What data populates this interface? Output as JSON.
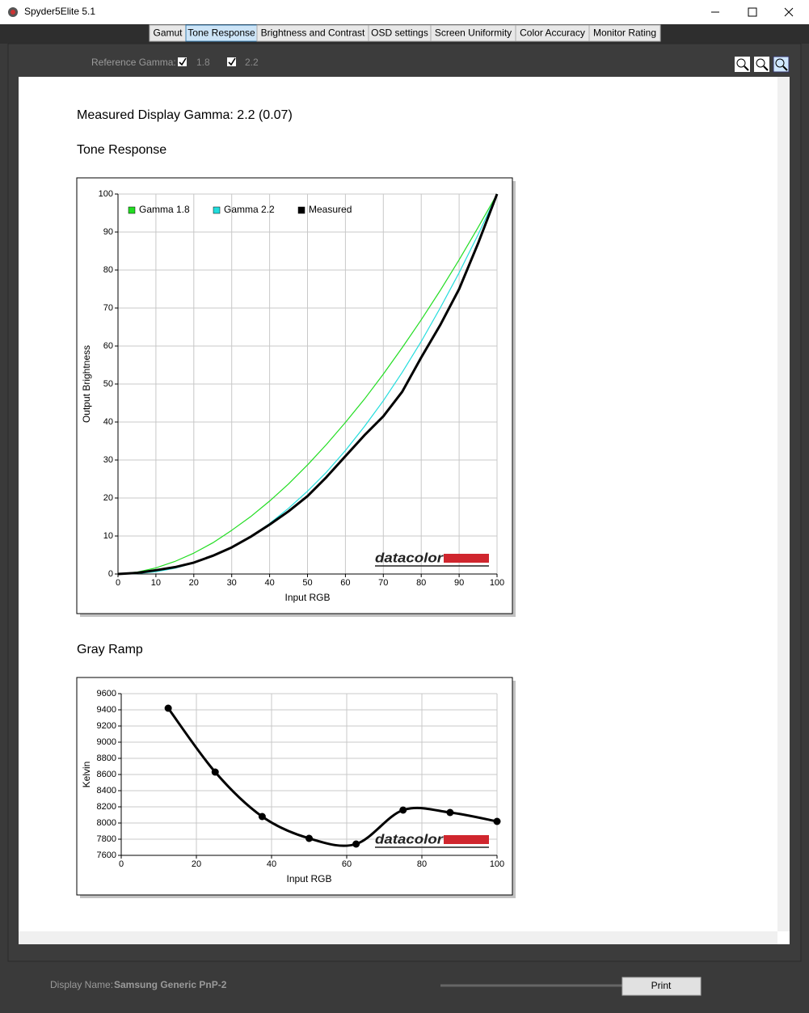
{
  "window": {
    "title": "Spyder5Elite 5.1"
  },
  "tabs": [
    "Gamut",
    "Tone Response",
    "Brightness and Contrast",
    "OSD settings",
    "Screen Uniformity",
    "Color Accuracy",
    "Monitor Rating"
  ],
  "active_tab": 1,
  "toolbar": {
    "reference_gamma_label": "Reference Gamma:",
    "options": [
      "1.8",
      "2.2"
    ]
  },
  "report": {
    "measured_gamma": "Measured Display Gamma: 2.2 (0.07)",
    "tone_response_title": "Tone Response",
    "gray_ramp_title": "Gray Ramp"
  },
  "footer": {
    "display_name_label": "Display Name:",
    "display_name": "Samsung Generic PnP-2",
    "print_button": "Print"
  },
  "chart_data": [
    {
      "type": "line",
      "x": [
        0,
        5,
        10,
        15,
        20,
        25,
        30,
        35,
        40,
        45,
        50,
        55,
        60,
        65,
        70,
        75,
        80,
        85,
        90,
        95,
        100
      ],
      "series": [
        {
          "name": "Gamma 1.8",
          "color": "#22dd22",
          "values": [
            0,
            0.5,
            1.6,
            3.3,
            5.5,
            8.2,
            11.5,
            15.1,
            19.2,
            23.7,
            28.7,
            34.1,
            39.9,
            46.0,
            52.6,
            59.6,
            66.9,
            74.6,
            82.7,
            91.2,
            100
          ]
        },
        {
          "name": "Gamma 2.2",
          "color": "#22dddd",
          "values": [
            0,
            0.1,
            0.6,
            1.5,
            2.9,
            4.7,
            7.1,
            9.9,
            13.3,
            17.3,
            21.8,
            26.8,
            32.5,
            38.8,
            45.6,
            53.1,
            61.2,
            70.0,
            79.3,
            89.3,
            100
          ]
        },
        {
          "name": "Measured",
          "color": "#000000",
          "values": [
            0,
            0.3,
            1.0,
            1.8,
            3.0,
            4.8,
            7.0,
            9.8,
            13.0,
            16.5,
            20.5,
            25.5,
            31.0,
            36.5,
            41.5,
            48.0,
            57.0,
            65.5,
            75.0,
            87.0,
            100
          ]
        }
      ],
      "xlim": [
        0,
        100
      ],
      "ylim": [
        0,
        100
      ],
      "xticks": [
        0,
        10,
        20,
        30,
        40,
        50,
        60,
        70,
        80,
        90,
        100
      ],
      "yticks": [
        0,
        10,
        20,
        30,
        40,
        50,
        60,
        70,
        80,
        90,
        100
      ],
      "xlabel": "Input RGB",
      "ylabel": "Output Brightness",
      "grid": true,
      "legend": "upper left",
      "watermark": "datacolor"
    },
    {
      "type": "line",
      "x": [
        12.5,
        25,
        37.5,
        50,
        62.5,
        75,
        87.5,
        100
      ],
      "values": [
        9420,
        8630,
        8080,
        7810,
        7740,
        8160,
        8130,
        8020
      ],
      "color": "#000000",
      "markers": true,
      "smooth": true,
      "xlim": [
        0,
        100
      ],
      "ylim": [
        7600,
        9600
      ],
      "xticks": [
        0,
        20,
        40,
        60,
        80,
        100
      ],
      "yticks": [
        7600,
        7800,
        8000,
        8200,
        8400,
        8600,
        8800,
        9000,
        9200,
        9400,
        9600
      ],
      "xlabel": "Input RGB",
      "ylabel": "Kelvin",
      "grid": true,
      "watermark": "datacolor"
    }
  ]
}
